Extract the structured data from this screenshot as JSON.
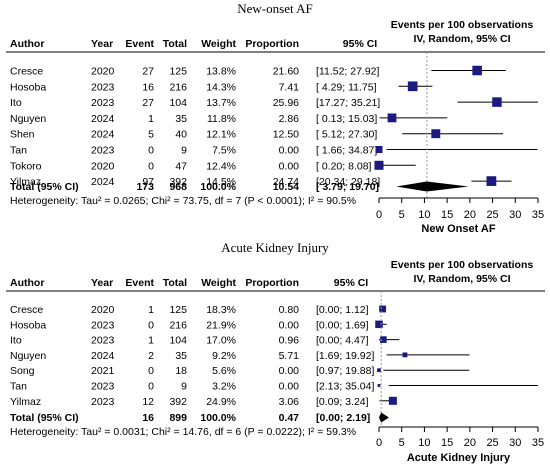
{
  "chart_data": [
    {
      "type": "forest",
      "title": "New-onset AF",
      "columns": [
        "Author",
        "Year",
        "Event",
        "Total",
        "Weight",
        "Proportion",
        "95% CI"
      ],
      "plot_header": [
        "Events per 100 observations",
        "IV, Random, 95% CI"
      ],
      "xlabel": "New Onset AF",
      "xlim": [
        0,
        35
      ],
      "xticks": [
        0,
        5,
        10,
        15,
        20,
        25,
        30,
        35
      ],
      "xtick_labels": [
        "0",
        "5",
        "10",
        "15",
        "20",
        "25",
        "30",
        "35"
      ],
      "rows": [
        {
          "author": "Cresce",
          "year": "2020",
          "event": "27",
          "total": "125",
          "weight": "13.8%",
          "proportion": "21.60",
          "ci_text": "[11.52; 27.92]",
          "est": 21.6,
          "lo": 11.52,
          "hi": 27.92
        },
        {
          "author": "Hosoba",
          "year": "2023",
          "event": "16",
          "total": "216",
          "weight": "14.3%",
          "proportion": "7.41",
          "ci_text": "[ 4.29; 11.75]",
          "est": 7.41,
          "lo": 4.29,
          "hi": 11.75
        },
        {
          "author": "Ito",
          "year": "2023",
          "event": "27",
          "total": "104",
          "weight": "13.7%",
          "proportion": "25.96",
          "ci_text": "[17.27; 35.21]",
          "est": 25.96,
          "lo": 17.27,
          "hi": 35.21
        },
        {
          "author": "Nguyen",
          "year": "2024",
          "event": "1",
          "total": "35",
          "weight": "11.8%",
          "proportion": "2.86",
          "ci_text": "[ 0.13; 15.03]",
          "est": 2.86,
          "lo": 0.13,
          "hi": 15.03
        },
        {
          "author": "Shen",
          "year": "2024",
          "event": "5",
          "total": "40",
          "weight": "12.1%",
          "proportion": "12.50",
          "ci_text": "[ 5.12; 27.30]",
          "est": 12.5,
          "lo": 5.12,
          "hi": 27.3
        },
        {
          "author": "Tan",
          "year": "2023",
          "event": "0",
          "total": "9",
          "weight": "7.5%",
          "proportion": "0.00",
          "ci_text": "[ 1.66; 34.87]",
          "est": 0,
          "lo": 1.66,
          "hi": 34.87
        },
        {
          "author": "Tokoro",
          "year": "2020",
          "event": "0",
          "total": "47",
          "weight": "12.4%",
          "proportion": "0.00",
          "ci_text": "[ 0.20; 8.08]",
          "est": 0,
          "lo": 0.2,
          "hi": 8.08
        },
        {
          "author": "Yilmaz",
          "year": "2024",
          "event": "97",
          "total": "392",
          "weight": "14.5%",
          "proportion": "24.74",
          "ci_text": "[20.34; 29.18]",
          "est": 24.74,
          "lo": 20.34,
          "hi": 29.18
        }
      ],
      "total": {
        "label": "Total (95% CI)",
        "event": "173",
        "total": "968",
        "weight": "100.0%",
        "proportion": "10.54",
        "ci_text": "[ 3.79; 19.70]",
        "est": 10.54,
        "lo": 3.79,
        "hi": 19.7
      },
      "heterogeneity": "Heterogeneity: Tau² = 0.0265; Chi² = 73.75, df = 7 (P < 0.0001); I² = 90.5%"
    },
    {
      "type": "forest",
      "title": "Acute Kidney Injury",
      "columns": [
        "Author",
        "Year",
        "Event",
        "Total",
        "Weight",
        "Proportion",
        "95% CI"
      ],
      "plot_header": [
        "Events per 100 observations",
        "IV, Random, 95% CI"
      ],
      "xlabel": "Acute Kidney Injury",
      "xlim": [
        0,
        35
      ],
      "xticks": [
        0,
        5,
        10,
        15,
        20,
        25,
        30,
        35
      ],
      "xtick_labels": [
        "0",
        "5",
        "10",
        "15",
        "20",
        "25",
        "30",
        "35"
      ],
      "rows": [
        {
          "author": "Cresce",
          "year": "2020",
          "event": "1",
          "total": "125",
          "weight": "18.3%",
          "proportion": "0.80",
          "ci_text": "[0.00; 1.12]",
          "est": 0.8,
          "lo": 0,
          "hi": 1.12
        },
        {
          "author": "Hosoba",
          "year": "2023",
          "event": "0",
          "total": "216",
          "weight": "21.9%",
          "proportion": "0.00",
          "ci_text": "[0.00; 1.69]",
          "est": 0,
          "lo": 0,
          "hi": 1.69
        },
        {
          "author": "Ito",
          "year": "2023",
          "event": "1",
          "total": "104",
          "weight": "17.0%",
          "proportion": "0.96",
          "ci_text": "[0.00; 4.47]",
          "est": 0.96,
          "lo": 0,
          "hi": 4.47
        },
        {
          "author": "Nguyen",
          "year": "2024",
          "event": "2",
          "total": "35",
          "weight": "9.2%",
          "proportion": "5.71",
          "ci_text": "[1.69; 19.92]",
          "est": 5.71,
          "lo": 1.69,
          "hi": 19.92
        },
        {
          "author": "Song",
          "year": "2021",
          "event": "0",
          "total": "18",
          "weight": "5.6%",
          "proportion": "0.00",
          "ci_text": "[0.97; 19.88]",
          "est": 0,
          "lo": 0.97,
          "hi": 19.88
        },
        {
          "author": "Tan",
          "year": "2023",
          "event": "0",
          "total": "9",
          "weight": "3.2%",
          "proportion": "0.00",
          "ci_text": "[2.13; 35.04]",
          "est": 0,
          "lo": 2.13,
          "hi": 35.04
        },
        {
          "author": "Yilmaz",
          "year": "2023",
          "event": "12",
          "total": "392",
          "weight": "24.9%",
          "proportion": "3.06",
          "ci_text": "[0.09; 3.24]",
          "est": 3.06,
          "lo": 0.09,
          "hi": 3.24
        }
      ],
      "total": {
        "label": "Total (95% CI)",
        "event": "16",
        "total": "899",
        "weight": "100.0%",
        "proportion": "0.47",
        "ci_text": "[0.00; 2.19]",
        "est": 0.47,
        "lo": 0,
        "hi": 2.19
      },
      "heterogeneity": "Heterogeneity: Tau² = 0.0031; Chi² = 14.76, df = 6 (P = 0.0222); I² = 59.3%"
    }
  ],
  "colors": {
    "marker": "#1a1a80",
    "text": "#000000",
    "line": "#000000",
    "ref_line": "#9a9a9a"
  }
}
